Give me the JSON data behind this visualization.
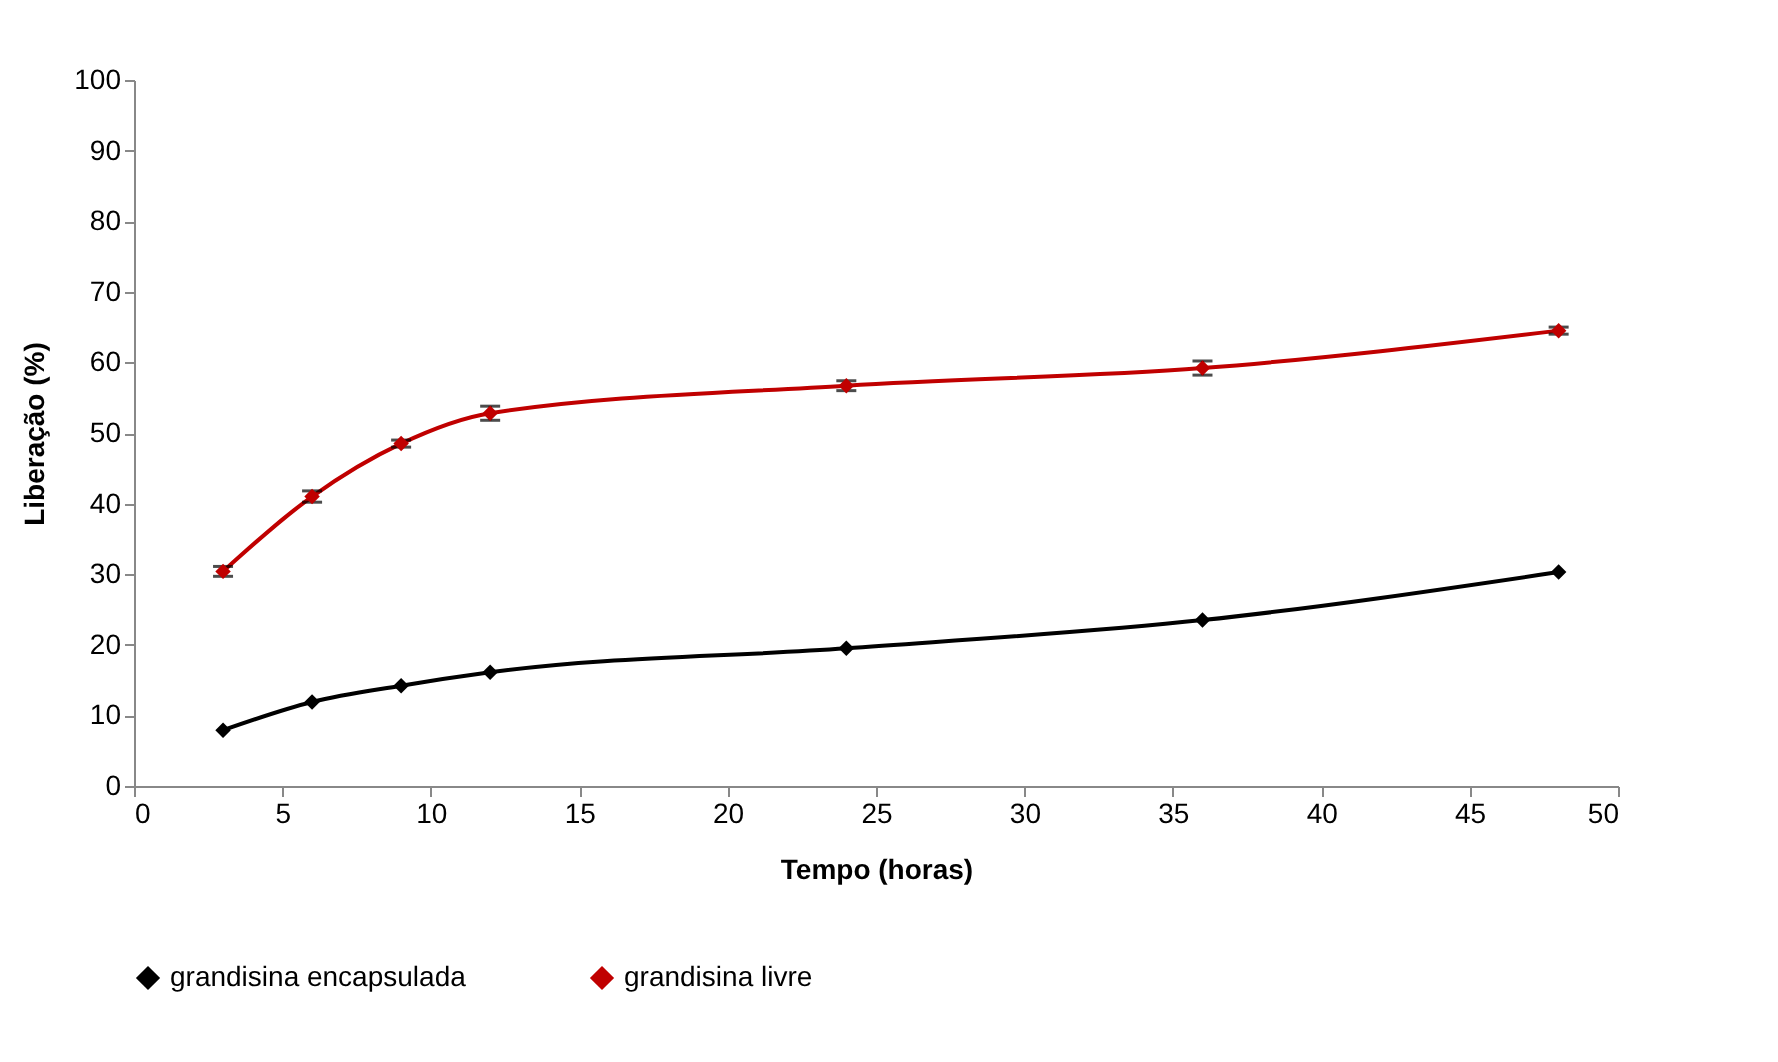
{
  "chart_data": {
    "type": "line",
    "xlabel": "Tempo  (horas)",
    "ylabel": "Liberação (%)",
    "x": [
      3,
      6,
      9,
      12,
      24,
      36,
      48
    ],
    "series": [
      {
        "name": "grandisina encapsulada",
        "color": "#000000",
        "values": [
          7.9,
          11.9,
          14.2,
          16.1,
          19.5,
          23.5,
          30.3
        ]
      },
      {
        "name": "grandisina livre",
        "color": "#c00000",
        "values": [
          30.4,
          41.0,
          48.5,
          52.8,
          56.7,
          59.2,
          64.5
        ],
        "errors": [
          0.7,
          0.8,
          0.5,
          1.0,
          0.7,
          1.0,
          0.5
        ]
      }
    ],
    "xlim": [
      0,
      50
    ],
    "xticks": [
      0,
      5,
      10,
      15,
      20,
      25,
      30,
      35,
      40,
      45,
      50
    ],
    "ylim": [
      0,
      100
    ],
    "yticks": [
      0,
      10,
      20,
      30,
      40,
      50,
      60,
      70,
      80,
      90,
      100
    ],
    "grid": false,
    "legend": "bottom",
    "marker": "diamond",
    "line_style": "solid"
  }
}
